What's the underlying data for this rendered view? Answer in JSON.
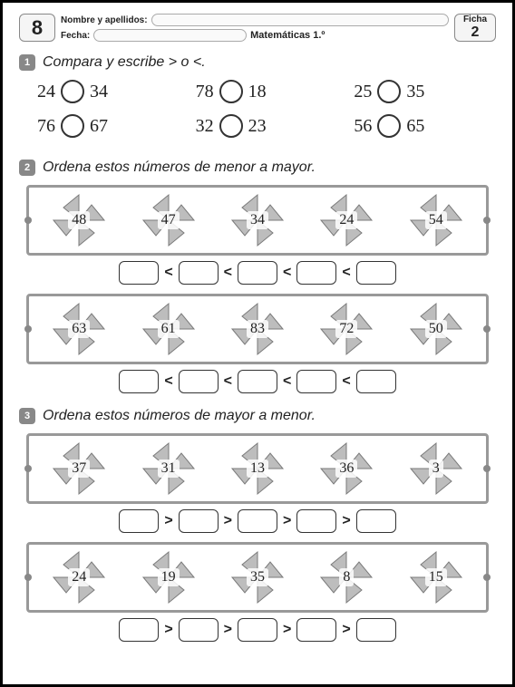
{
  "header": {
    "page_number": "8",
    "name_label": "Nombre y apellidos:",
    "date_label": "Fecha:",
    "subject": "Matemáticas 1.º",
    "ficha_label": "Ficha",
    "ficha_number": "2"
  },
  "section1": {
    "badge": "1",
    "title": "Compara y escribe > o <.",
    "pairs": [
      {
        "a": "24",
        "b": "34"
      },
      {
        "a": "78",
        "b": "18"
      },
      {
        "a": "25",
        "b": "35"
      },
      {
        "a": "76",
        "b": "67"
      },
      {
        "a": "32",
        "b": "23"
      },
      {
        "a": "56",
        "b": "65"
      }
    ]
  },
  "section2": {
    "badge": "2",
    "title": "Ordena estos números de menor a mayor.",
    "operator": "<",
    "rows": [
      [
        "48",
        "47",
        "34",
        "24",
        "54"
      ],
      [
        "63",
        "61",
        "83",
        "72",
        "50"
      ]
    ]
  },
  "section3": {
    "badge": "3",
    "title": "Ordena estos números de mayor a menor.",
    "operator": ">",
    "rows": [
      [
        "37",
        "31",
        "13",
        "36",
        "3"
      ],
      [
        "24",
        "19",
        "35",
        "8",
        "15"
      ]
    ]
  },
  "style": {
    "pinwheel_fill": "#bdbdbd",
    "pinwheel_stroke": "#7a7a7a",
    "frame_border": "#999999"
  }
}
